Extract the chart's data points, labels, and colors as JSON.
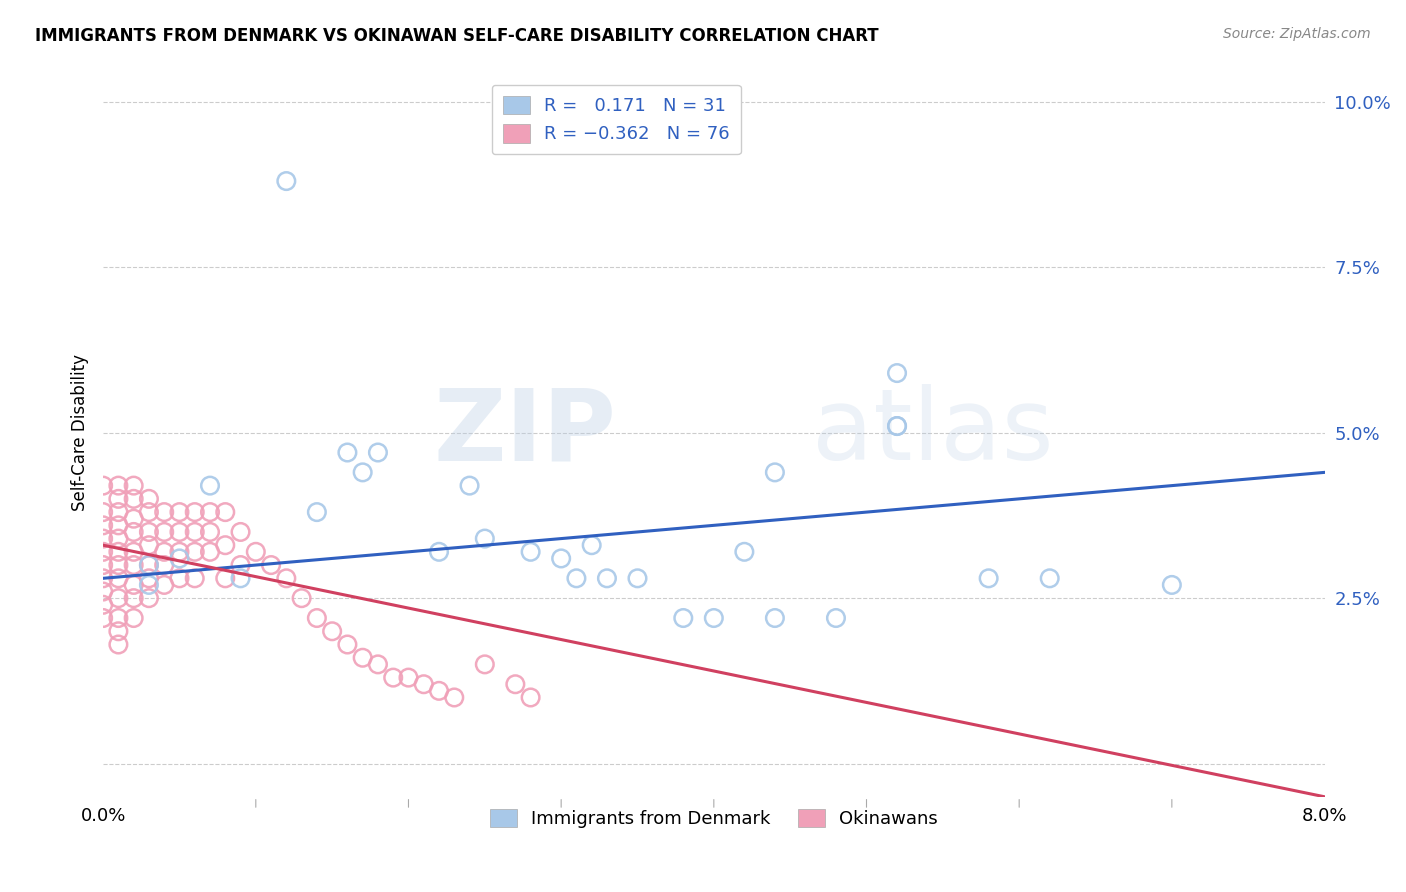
{
  "title": "IMMIGRANTS FROM DENMARK VS OKINAWAN SELF-CARE DISABILITY CORRELATION CHART",
  "source": "Source: ZipAtlas.com",
  "ylabel": "Self-Care Disability",
  "xlim": [
    0.0,
    0.08
  ],
  "ylim": [
    -0.005,
    0.105
  ],
  "xticks": [
    0.0,
    0.01,
    0.02,
    0.03,
    0.04,
    0.05,
    0.06,
    0.07,
    0.08
  ],
  "xticklabels": [
    "0.0%",
    "",
    "",
    "",
    "",
    "",
    "",
    "",
    "8.0%"
  ],
  "yticks": [
    0.0,
    0.025,
    0.05,
    0.075,
    0.1
  ],
  "yticklabels": [
    "",
    "2.5%",
    "5.0%",
    "7.5%",
    "10.0%"
  ],
  "blue_color": "#a8c8e8",
  "pink_color": "#f0a0b8",
  "blue_line_color": "#3060c0",
  "pink_line_color": "#d04060",
  "legend_label1": "Immigrants from Denmark",
  "legend_label2": "Okinawans",
  "watermark_zip": "ZIP",
  "watermark_atlas": "atlas",
  "blue_dots_x": [
    0.012,
    0.003,
    0.016,
    0.017,
    0.018,
    0.009,
    0.005,
    0.022,
    0.014,
    0.025,
    0.024,
    0.007,
    0.028,
    0.03,
    0.031,
    0.032,
    0.033,
    0.052,
    0.052,
    0.052,
    0.035,
    0.038,
    0.04,
    0.042,
    0.044,
    0.07,
    0.058,
    0.062,
    0.003,
    0.048,
    0.044
  ],
  "blue_dots_y": [
    0.088,
    0.03,
    0.047,
    0.044,
    0.047,
    0.028,
    0.031,
    0.032,
    0.038,
    0.034,
    0.042,
    0.042,
    0.032,
    0.031,
    0.028,
    0.033,
    0.028,
    0.059,
    0.051,
    0.051,
    0.028,
    0.022,
    0.022,
    0.032,
    0.022,
    0.027,
    0.028,
    0.028,
    0.027,
    0.022,
    0.044
  ],
  "pink_dots_x": [
    0.0,
    0.0,
    0.0,
    0.0,
    0.0,
    0.0,
    0.0,
    0.0,
    0.0,
    0.0,
    0.001,
    0.001,
    0.001,
    0.001,
    0.001,
    0.001,
    0.001,
    0.001,
    0.001,
    0.001,
    0.001,
    0.001,
    0.002,
    0.002,
    0.002,
    0.002,
    0.002,
    0.002,
    0.002,
    0.002,
    0.002,
    0.003,
    0.003,
    0.003,
    0.003,
    0.003,
    0.003,
    0.003,
    0.004,
    0.004,
    0.004,
    0.004,
    0.004,
    0.005,
    0.005,
    0.005,
    0.005,
    0.006,
    0.006,
    0.006,
    0.006,
    0.007,
    0.007,
    0.007,
    0.008,
    0.008,
    0.008,
    0.009,
    0.009,
    0.01,
    0.011,
    0.012,
    0.013,
    0.014,
    0.015,
    0.016,
    0.017,
    0.018,
    0.019,
    0.02,
    0.021,
    0.022,
    0.023,
    0.025,
    0.027,
    0.028
  ],
  "pink_dots_y": [
    0.042,
    0.038,
    0.036,
    0.034,
    0.032,
    0.03,
    0.028,
    0.026,
    0.024,
    0.022,
    0.042,
    0.04,
    0.038,
    0.036,
    0.034,
    0.032,
    0.03,
    0.028,
    0.025,
    0.022,
    0.02,
    0.018,
    0.042,
    0.04,
    0.037,
    0.035,
    0.032,
    0.03,
    0.027,
    0.025,
    0.022,
    0.04,
    0.038,
    0.035,
    0.033,
    0.03,
    0.028,
    0.025,
    0.038,
    0.035,
    0.032,
    0.03,
    0.027,
    0.038,
    0.035,
    0.032,
    0.028,
    0.038,
    0.035,
    0.032,
    0.028,
    0.038,
    0.035,
    0.032,
    0.038,
    0.033,
    0.028,
    0.035,
    0.03,
    0.032,
    0.03,
    0.028,
    0.025,
    0.022,
    0.02,
    0.018,
    0.016,
    0.015,
    0.013,
    0.013,
    0.012,
    0.011,
    0.01,
    0.015,
    0.012,
    0.01
  ]
}
